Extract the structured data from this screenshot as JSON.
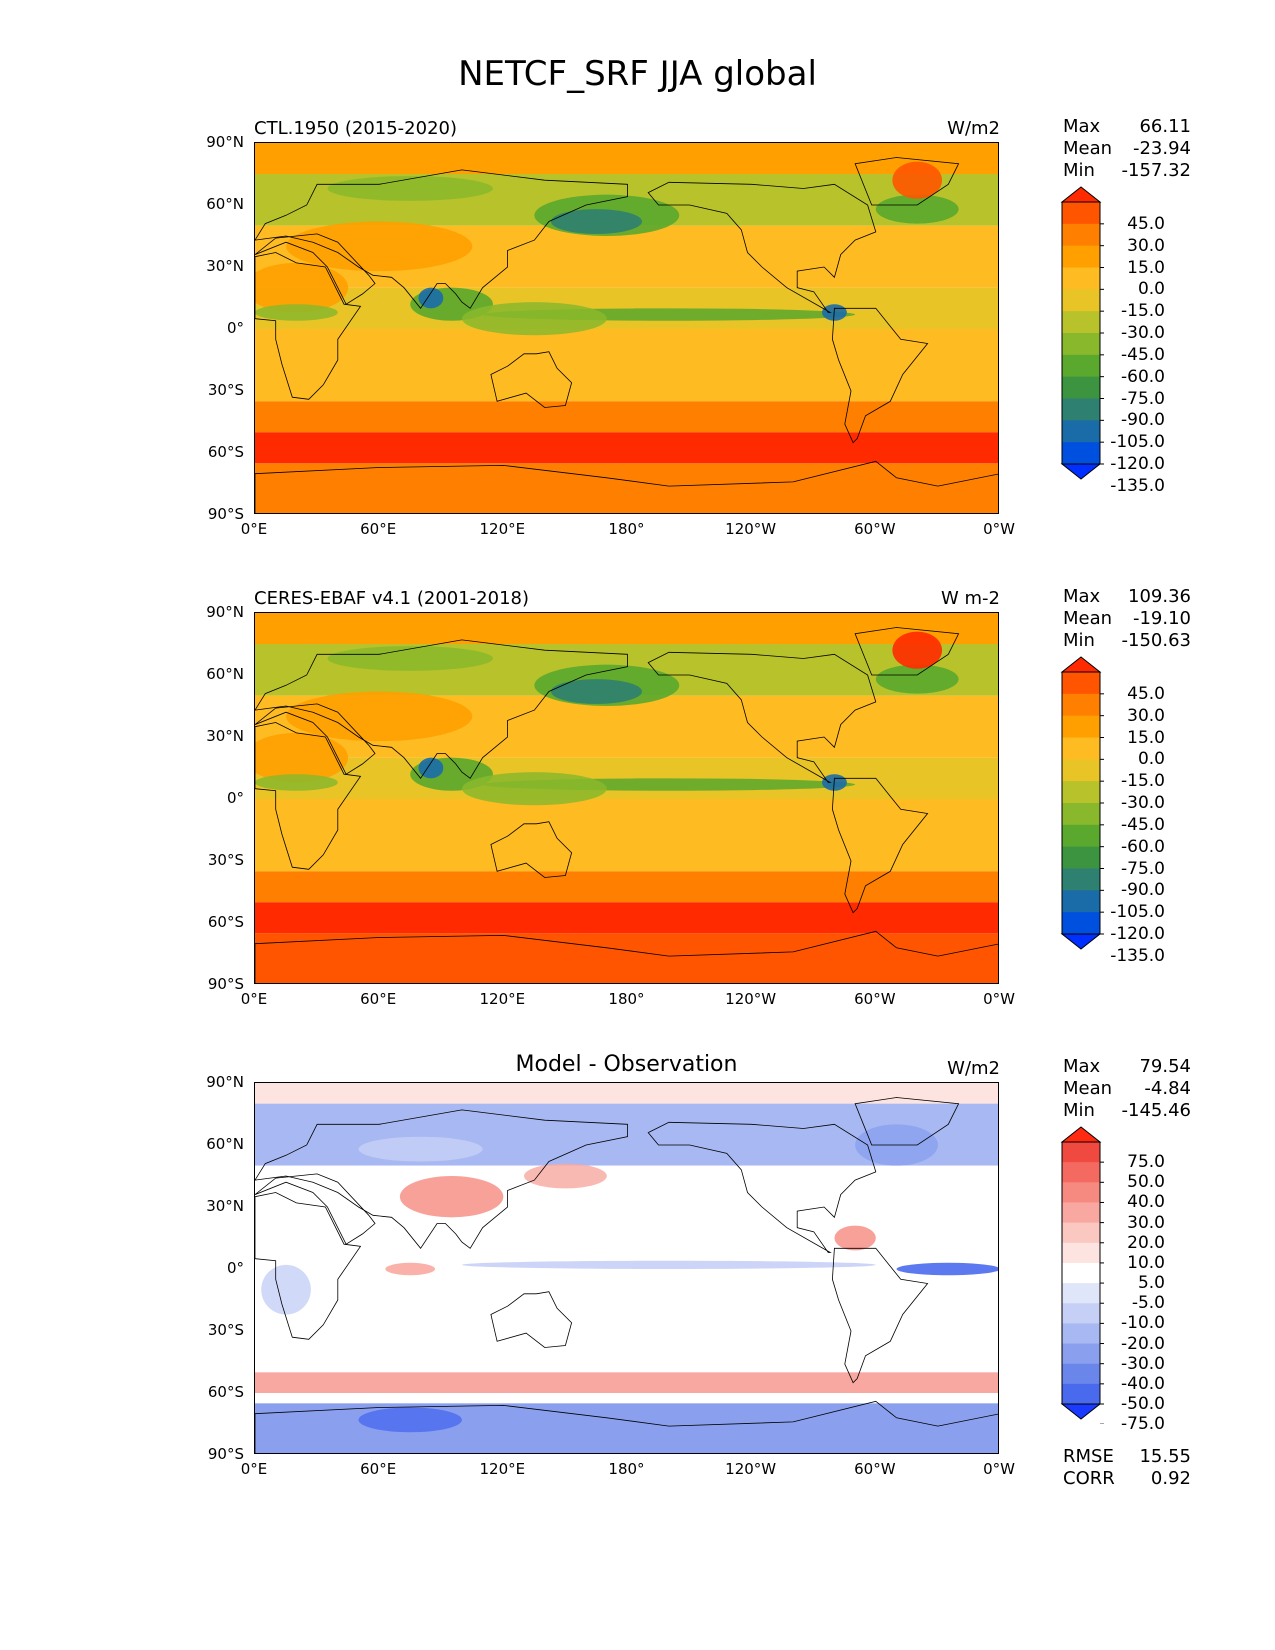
{
  "figure": {
    "title": "NETCF_SRF JJA global"
  },
  "axes": {
    "lat_ticks": [
      "90°N",
      "60°N",
      "30°N",
      "0°",
      "30°S",
      "60°S",
      "90°S"
    ],
    "lon_ticks": [
      "0°E",
      "60°E",
      "120°E",
      "180°",
      "120°W",
      "60°W",
      "0°W"
    ]
  },
  "panels": [
    {
      "title": "CTL.1950 (2015-2020)",
      "units": "W/m2",
      "stats": [
        {
          "label": "Max",
          "value": "66.11"
        },
        {
          "label": "Mean",
          "value": "-23.94"
        },
        {
          "label": "Min",
          "value": "-157.32"
        }
      ],
      "colorbar": {
        "levels": [
          "45.0",
          "30.0",
          "15.0",
          "0.0",
          "-15.0",
          "-30.0",
          "-45.0",
          "-60.0",
          "-75.0",
          "-90.0",
          "-105.0",
          "-120.0",
          "-135.0"
        ],
        "colors": [
          "#ff2a00",
          "#ff5500",
          "#ff8000",
          "#ffa000",
          "#ffbb22",
          "#e8c427",
          "#b8c22a",
          "#8ab82c",
          "#5aa82e",
          "#3d9440",
          "#2e8070",
          "#1a6ca8",
          "#0050e0",
          "#0030ff"
        ]
      }
    },
    {
      "title": "CERES-EBAF v4.1 (2001-2018)",
      "units": "W m-2",
      "stats": [
        {
          "label": "Max",
          "value": "109.36"
        },
        {
          "label": "Mean",
          "value": "-19.10"
        },
        {
          "label": "Min",
          "value": "-150.63"
        }
      ],
      "colorbar": {
        "levels": [
          "45.0",
          "30.0",
          "15.0",
          "0.0",
          "-15.0",
          "-30.0",
          "-45.0",
          "-60.0",
          "-75.0",
          "-90.0",
          "-105.0",
          "-120.0",
          "-135.0"
        ],
        "colors": [
          "#ff2a00",
          "#ff5500",
          "#ff8000",
          "#ffa000",
          "#ffbb22",
          "#e8c427",
          "#b8c22a",
          "#8ab82c",
          "#5aa82e",
          "#3d9440",
          "#2e8070",
          "#1a6ca8",
          "#0050e0",
          "#0030ff"
        ]
      }
    },
    {
      "title": "Model - Observation",
      "units": "W/m2",
      "stats": [
        {
          "label": "Max",
          "value": "79.54"
        },
        {
          "label": "Mean",
          "value": "-4.84"
        },
        {
          "label": "Min",
          "value": "-145.46"
        }
      ],
      "colorbar": {
        "levels": [
          "75.0",
          "50.0",
          "40.0",
          "30.0",
          "20.0",
          "10.0",
          "5.0",
          "-5.0",
          "-10.0",
          "-20.0",
          "-30.0",
          "-40.0",
          "-50.0",
          "-75.0"
        ],
        "colors": [
          "#ff2a10",
          "#f04a40",
          "#f46a60",
          "#f68a80",
          "#f8a8a0",
          "#fac8c0",
          "#fde4e0",
          "#ffffff",
          "#e0e6fa",
          "#c6d0f6",
          "#a8b8f2",
          "#8aa0ee",
          "#6a86ea",
          "#4a6aee",
          "#1a3aff"
        ]
      },
      "error_stats": [
        {
          "label": "RMSE",
          "value": "15.55"
        },
        {
          "label": "CORR",
          "value": "0.92"
        }
      ]
    }
  ]
}
